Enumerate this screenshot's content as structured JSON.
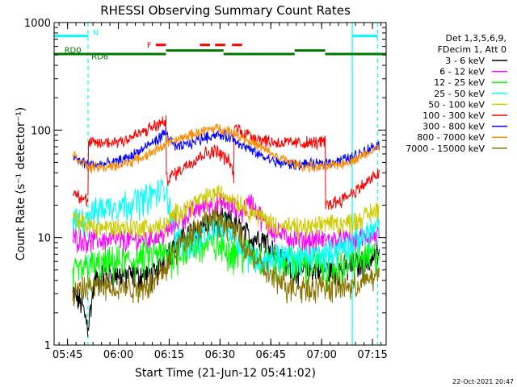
{
  "chart_data": {
    "type": "line",
    "title": "RHESSI Observing Summary Count Rates",
    "xlabel": "Start Time (21-Jun-12 05:41:02)",
    "ylabel": "Count Rate (s⁻¹ detector⁻¹)",
    "x_unit": "minutes after 05:41:02",
    "xlim": [
      0,
      98
    ],
    "ylim": [
      1,
      1000
    ],
    "y_scale": "log",
    "grid": false,
    "x_ticks": [
      {
        "x": 3.97,
        "label": "05:45"
      },
      {
        "x": 18.97,
        "label": "06:00"
      },
      {
        "x": 33.97,
        "label": "06:15"
      },
      {
        "x": 48.97,
        "label": "06:30"
      },
      {
        "x": 63.97,
        "label": "06:45"
      },
      {
        "x": 78.97,
        "label": "07:00"
      },
      {
        "x": 93.97,
        "label": "07:15"
      }
    ],
    "y_ticks": [
      {
        "y": 1,
        "label": "1"
      },
      {
        "y": 10,
        "label": "10"
      },
      {
        "y": 100,
        "label": "100"
      },
      {
        "y": 1000,
        "label": "1000"
      }
    ],
    "legend": {
      "position": "right",
      "header": [
        "Det 1,3,5,6,9,",
        "FDecim 1, Att 0"
      ],
      "entries": [
        {
          "label": "3 - 6 keV",
          "color": "#000000"
        },
        {
          "label": "6 - 12 keV",
          "color": "#ff00ff"
        },
        {
          "label": "12 - 25 keV",
          "color": "#00ff00"
        },
        {
          "label": "25 - 50 keV",
          "color": "#00ffff"
        },
        {
          "label": "50 - 100 keV",
          "color": "#cccc00"
        },
        {
          "label": "100 - 300 keV",
          "color": "#ff0000"
        },
        {
          "label": "300 - 800 keV",
          "color": "#0000ff"
        },
        {
          "label": "800 - 7000 keV",
          "color": "#ff8c00"
        },
        {
          "label": "7000 - 15000 keV",
          "color": "#8b7500"
        }
      ]
    },
    "segments": [
      [
        5.5,
        10
      ],
      [
        10,
        33
      ],
      [
        33,
        53
      ],
      [
        53,
        80
      ],
      [
        80,
        88
      ],
      [
        88,
        96
      ]
    ],
    "night_markers": {
      "color": "#00ffff",
      "label": "N",
      "lines": [
        {
          "x": 10,
          "style": "dashed"
        },
        {
          "x": 88,
          "style": "solid"
        },
        {
          "x": 95.5,
          "style": "dashed"
        }
      ],
      "bars": [
        {
          "x0": 0,
          "x1": 10,
          "y": 750
        },
        {
          "x0": 88,
          "x1": 95.5,
          "y": 750
        }
      ]
    },
    "flare_flags": {
      "color": "#ff0000",
      "label": "F",
      "segments": [
        [
          30,
          33
        ],
        [
          43,
          46
        ],
        [
          47.5,
          50.5
        ],
        [
          52.5,
          55.5
        ]
      ],
      "y": 620
    },
    "decimation_flags": {
      "color": "#007700",
      "labels": [
        {
          "text": "RD0",
          "x": 3,
          "y": 550
        },
        {
          "text": "RD6",
          "x": 11,
          "y": 480
        }
      ],
      "segments": [
        [
          0,
          33
        ],
        [
          33,
          50
        ],
        [
          50,
          71
        ],
        [
          71,
          80
        ],
        [
          80,
          98
        ]
      ],
      "levels": [
        510,
        550,
        510,
        550,
        510
      ]
    },
    "series": [
      {
        "name": "3 - 6 keV",
        "color": "#000000",
        "x": [
          5.5,
          8,
          10,
          12,
          15,
          18,
          22,
          26,
          30,
          33,
          36,
          40,
          44,
          48,
          52,
          55,
          58,
          62,
          66,
          70,
          74,
          78,
          80,
          84,
          88,
          92,
          96
        ],
        "values": [
          3,
          2.5,
          1.5,
          4,
          4.5,
          4.5,
          4.5,
          4.5,
          4.5,
          7,
          9,
          11,
          13,
          14,
          14,
          12,
          10,
          10,
          7,
          5,
          5,
          5,
          5,
          5,
          5.5,
          6,
          7
        ]
      },
      {
        "name": "6 - 12 keV",
        "color": "#ff00ff",
        "x": [
          5.5,
          10,
          14,
          18,
          22,
          26,
          30,
          33,
          36,
          40,
          44,
          48,
          52,
          55,
          58,
          62,
          66,
          70,
          74,
          78,
          80,
          84,
          88,
          92,
          96
        ],
        "values": [
          10,
          9.5,
          9.5,
          9.5,
          9.5,
          9.5,
          10,
          11,
          14,
          17,
          20,
          21,
          20,
          17,
          22,
          14,
          11,
          10,
          9.5,
          9.5,
          9.5,
          9.5,
          9.5,
          10,
          10.5
        ]
      },
      {
        "name": "12 - 25 keV",
        "color": "#00ff00",
        "x": [
          5.5,
          10,
          14,
          18,
          22,
          26,
          30,
          33,
          36,
          40,
          44,
          48,
          52,
          55,
          58,
          62,
          66,
          70,
          74,
          78,
          80,
          84,
          88,
          92,
          96
        ],
        "values": [
          4.5,
          5.5,
          5.5,
          6,
          6,
          6.5,
          7,
          7,
          7.5,
          8,
          8.5,
          8.5,
          8,
          7.5,
          7,
          6.5,
          6,
          6,
          6,
          6,
          5,
          5.5,
          6,
          6.5,
          7
        ]
      },
      {
        "name": "25 - 50 keV",
        "color": "#00ffff",
        "x": [
          5.5,
          10,
          14,
          18,
          22,
          26,
          30,
          33,
          36,
          40,
          44,
          48,
          52,
          55,
          58,
          62,
          66,
          70,
          74,
          78,
          80,
          84,
          88,
          92,
          96
        ],
        "values": [
          14,
          16,
          19,
          20,
          21,
          23,
          26,
          29,
          10,
          9,
          11,
          13,
          12,
          9,
          7,
          6,
          7,
          6.5,
          6.5,
          7,
          7,
          8,
          9,
          11,
          13
        ]
      },
      {
        "name": "50 - 100 keV",
        "color": "#cccc00",
        "x": [
          5.5,
          10,
          14,
          18,
          22,
          26,
          30,
          33,
          36,
          40,
          44,
          48,
          52,
          55,
          58,
          62,
          66,
          70,
          74,
          78,
          80,
          84,
          88,
          92,
          96
        ],
        "values": [
          15,
          13,
          12.5,
          12.5,
          12.5,
          12.5,
          12.5,
          13,
          17,
          20,
          23,
          26,
          24,
          21,
          18,
          15,
          13,
          12.5,
          12.5,
          12.5,
          14,
          13.5,
          14,
          16,
          19
        ]
      },
      {
        "name": "100 - 300 keV",
        "color": "#ff0000",
        "x": [
          5.5,
          10,
          10.01,
          14,
          18,
          22,
          26,
          30,
          33,
          33.01,
          36,
          40,
          44,
          48,
          52,
          53,
          53.01,
          56,
          60,
          64,
          68,
          72,
          76,
          80,
          80.01,
          84,
          88,
          92,
          96
        ],
        "values": [
          27,
          22,
          75,
          76,
          78,
          84,
          95,
          110,
          120,
          35,
          40,
          50,
          60,
          65,
          50,
          35,
          110,
          95,
          85,
          78,
          76,
          76,
          76,
          78,
          20,
          22,
          26,
          32,
          40
        ]
      },
      {
        "name": "300 - 800 keV",
        "color": "#0000ff",
        "x": [
          5.5,
          10,
          14,
          18,
          22,
          26,
          30,
          33,
          36,
          40,
          44,
          48,
          52,
          55,
          58,
          62,
          66,
          70,
          74,
          78,
          80,
          84,
          88,
          92,
          96
        ],
        "values": [
          55,
          48,
          48,
          50,
          56,
          66,
          80,
          95,
          68,
          75,
          85,
          92,
          86,
          75,
          65,
          56,
          50,
          48,
          48,
          48,
          50,
          52,
          56,
          65,
          75
        ]
      },
      {
        "name": "800 - 7000 keV",
        "color": "#ff8c00",
        "x": [
          5.5,
          10,
          14,
          18,
          22,
          26,
          30,
          33,
          36,
          40,
          44,
          48,
          52,
          55,
          58,
          62,
          66,
          70,
          74,
          78,
          80,
          84,
          88,
          92,
          96
        ],
        "values": [
          60,
          45,
          45,
          46,
          50,
          56,
          65,
          75,
          80,
          90,
          98,
          105,
          98,
          88,
          78,
          66,
          56,
          50,
          46,
          45,
          46,
          48,
          52,
          60,
          70
        ]
      },
      {
        "name": "7000 - 15000 keV",
        "color": "#8b7500",
        "x": [
          5.5,
          10,
          14,
          18,
          22,
          26,
          30,
          33,
          36,
          40,
          44,
          48,
          52,
          55,
          58,
          62,
          66,
          70,
          74,
          78,
          80,
          84,
          88,
          92,
          96
        ],
        "values": [
          3,
          3.5,
          3.5,
          3.5,
          3.5,
          3.5,
          4,
          5.5,
          8,
          11,
          14,
          15,
          13,
          10,
          7,
          5,
          4,
          3.5,
          3.5,
          3.5,
          3.5,
          3.5,
          3.5,
          4,
          4.5
        ]
      }
    ]
  },
  "footer": {
    "timestamp": "22-Oct-2021 20:47"
  }
}
